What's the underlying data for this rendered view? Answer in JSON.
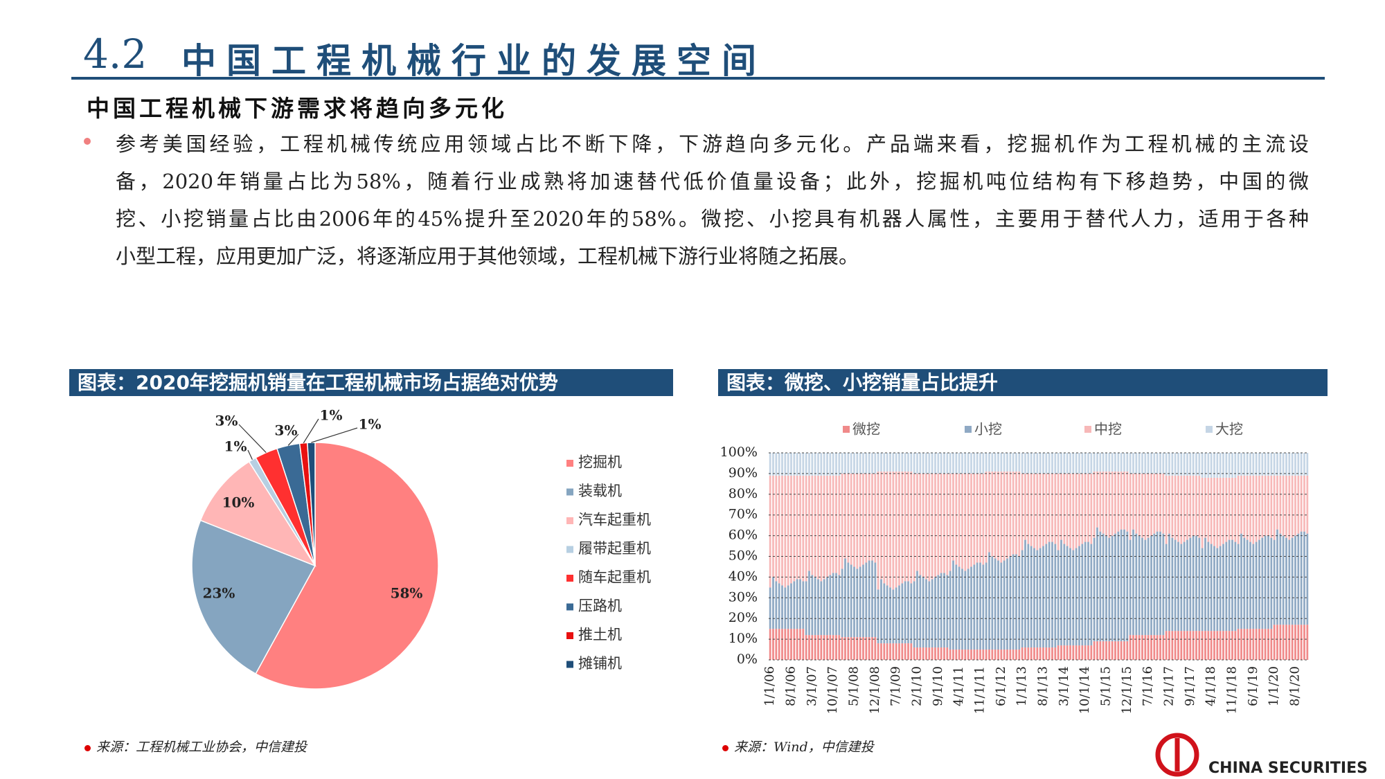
{
  "header": {
    "number": "4.2",
    "title": "中国工程机械行业的发展空间",
    "subtitle": "中国工程机械下游需求将趋向多元化"
  },
  "body": {
    "lines": [
      "参考美国经验，工程机械传统应用领域占比不断下降，下游趋向多元化。产品端来看，挖掘机作为工程机械的主流设",
      "备，2020年销量占比为58%，随着行业成熟将加速替代低价值量设备；此外，挖掘机吨位结构有下移趋势，中国的微",
      "挖、小挖销量占比由2006年的45%提升至2020年的58%。微挖、小挖具有机器人属性，主要用于替代人力，适用于各种",
      "小型工程，应用更加广泛，将逐渐应用于其他领域，工程机械下游行业将随之拓展。"
    ]
  },
  "chart_data": [
    {
      "type": "pie",
      "title": "图表：2020年挖掘机销量在工程机械市场占据绝对优势",
      "categories": [
        "挖掘机",
        "装载机",
        "汽车起重机",
        "履带起重机",
        "随车起重机",
        "压路机",
        "推土机",
        "摊铺机"
      ],
      "values": [
        58,
        23,
        10,
        1,
        3,
        3,
        1,
        1
      ],
      "value_labels": [
        "58%",
        "23%",
        "10%",
        "1%",
        "3%",
        "3%",
        "1%",
        "1%"
      ],
      "colors": [
        "#ff8080",
        "#85a5c0",
        "#ffb6b6",
        "#b7cfe2",
        "#ff3030",
        "#3a6a95",
        "#e81010",
        "#1f4e79"
      ],
      "source": "来源：工程机械工业协会，中信建投"
    },
    {
      "type": "bar",
      "stacked": true,
      "title": "图表：微挖、小挖销量占比提升",
      "categories": [
        "1/1/06",
        null,
        null,
        null,
        null,
        null,
        null,
        "8/1/06",
        null,
        null,
        null,
        null,
        null,
        null,
        "3/1/07",
        null,
        null,
        null,
        null,
        null,
        null,
        "10/1/07",
        null,
        null,
        null,
        null,
        null,
        null,
        "5/1/08",
        null,
        null,
        null,
        null,
        null,
        null,
        "12/1/08",
        null,
        null,
        null,
        null,
        null,
        null,
        "7/1/09",
        null,
        null,
        null,
        null,
        null,
        null,
        "2/1/10",
        null,
        null,
        null,
        null,
        null,
        null,
        "9/1/10",
        null,
        null,
        null,
        null,
        null,
        null,
        "4/1/11",
        null,
        null,
        null,
        null,
        null,
        null,
        "11/1/11",
        null,
        null,
        null,
        null,
        null,
        null,
        "6/1/12",
        null,
        null,
        null,
        null,
        null,
        null,
        "1/1/13",
        null,
        null,
        null,
        null,
        null,
        null,
        "8/1/13",
        null,
        null,
        null,
        null,
        null,
        null,
        "3/1/14",
        null,
        null,
        null,
        null,
        null,
        null,
        "10/1/14",
        null,
        null,
        null,
        null,
        null,
        null,
        "5/1/15",
        null,
        null,
        null,
        null,
        null,
        null,
        "12/1/15",
        null,
        null,
        null,
        null,
        null,
        null,
        "7/1/16",
        null,
        null,
        null,
        null,
        null,
        null,
        "2/1/17",
        null,
        null,
        null,
        null,
        null,
        null,
        "9/1/17",
        null,
        null,
        null,
        null,
        null,
        null,
        "4/1/18",
        null,
        null,
        null,
        null,
        null,
        null,
        "11/1/18",
        null,
        null,
        null,
        null,
        null,
        null,
        "6/1/19",
        null,
        null,
        null,
        null,
        null,
        null,
        "1/1/20",
        null,
        null,
        null,
        null,
        null,
        null,
        "8/1/20",
        null,
        null,
        null,
        null
      ],
      "series": [
        {
          "name": "微挖",
          "color": "#f08a8a",
          "values": [
            15,
            15,
            15,
            15,
            15,
            15,
            15,
            15,
            15,
            15,
            15,
            15,
            12,
            12,
            12,
            12,
            12,
            12,
            12,
            12,
            12,
            12,
            12,
            12,
            11,
            11,
            11,
            11,
            11,
            11,
            11,
            11,
            11,
            11,
            11,
            11,
            8,
            8,
            8,
            8,
            8,
            8,
            8,
            8,
            8,
            8,
            8,
            8,
            6,
            6,
            6,
            6,
            6,
            6,
            6,
            6,
            6,
            6,
            6,
            6,
            5,
            5,
            5,
            5,
            5,
            5,
            5,
            5,
            5,
            5,
            5,
            5,
            5,
            5,
            5,
            5,
            5,
            5,
            5,
            5,
            5,
            5,
            5,
            5,
            6,
            6,
            6,
            6,
            6,
            6,
            6,
            6,
            6,
            6,
            6,
            6,
            7,
            7,
            7,
            7,
            7,
            7,
            7,
            7,
            7,
            7,
            7,
            7,
            9,
            9,
            9,
            9,
            9,
            9,
            9,
            9,
            9,
            9,
            9,
            9,
            12,
            12,
            12,
            12,
            12,
            12,
            12,
            12,
            12,
            12,
            12,
            12,
            14,
            14,
            14,
            14,
            14,
            14,
            14,
            14,
            14,
            14,
            14,
            14,
            14,
            14,
            14,
            14,
            14,
            14,
            14,
            14,
            14,
            14,
            14,
            14,
            15,
            15,
            15,
            15,
            15,
            15,
            15,
            15,
            15,
            15,
            15,
            15,
            17,
            17,
            17,
            17,
            17,
            17,
            17,
            17,
            17,
            17,
            17,
            17
          ]
        },
        {
          "name": "小挖",
          "color": "#8fa9c4",
          "values": [
            20,
            25,
            23,
            22,
            21,
            20,
            21,
            22,
            23,
            24,
            24,
            23,
            26,
            31,
            29,
            28,
            27,
            26,
            27,
            28,
            29,
            30,
            30,
            29,
            33,
            38,
            36,
            35,
            34,
            33,
            34,
            35,
            36,
            37,
            37,
            36,
            26,
            31,
            29,
            28,
            27,
            26,
            27,
            28,
            29,
            30,
            30,
            29,
            32,
            37,
            35,
            34,
            33,
            32,
            33,
            34,
            35,
            36,
            36,
            35,
            38,
            43,
            41,
            40,
            39,
            38,
            39,
            40,
            41,
            42,
            42,
            41,
            42,
            47,
            45,
            44,
            43,
            42,
            43,
            44,
            45,
            46,
            46,
            45,
            47,
            52,
            50,
            49,
            48,
            47,
            48,
            49,
            50,
            51,
            51,
            50,
            46,
            51,
            49,
            48,
            47,
            46,
            47,
            48,
            49,
            50,
            50,
            49,
            50,
            55,
            53,
            52,
            51,
            50,
            51,
            52,
            53,
            54,
            54,
            53,
            46,
            51,
            49,
            48,
            47,
            46,
            47,
            48,
            49,
            50,
            50,
            49,
            42,
            47,
            45,
            44,
            43,
            42,
            43,
            44,
            45,
            46,
            46,
            45,
            40,
            45,
            43,
            42,
            41,
            40,
            41,
            42,
            43,
            44,
            44,
            43,
            41,
            46,
            44,
            43,
            42,
            41,
            42,
            43,
            44,
            45,
            45,
            44,
            41,
            46,
            44,
            43,
            42,
            41,
            42,
            43,
            44,
            45,
            45,
            44
          ]
        },
        {
          "name": "中挖",
          "color": "#f7b8b8",
          "values": [
            54,
            49,
            51,
            52,
            53,
            54,
            53,
            52,
            51,
            50,
            50,
            51,
            51,
            46,
            48,
            49,
            50,
            51,
            50,
            49,
            48,
            47,
            47,
            48,
            46,
            41,
            43,
            44,
            45,
            46,
            45,
            44,
            43,
            42,
            42,
            43,
            57,
            52,
            54,
            55,
            56,
            57,
            56,
            55,
            54,
            53,
            53,
            54,
            52,
            47,
            49,
            50,
            51,
            52,
            51,
            50,
            49,
            48,
            48,
            49,
            47,
            42,
            44,
            45,
            46,
            47,
            46,
            45,
            44,
            43,
            43,
            44,
            44,
            39,
            41,
            42,
            43,
            44,
            43,
            42,
            41,
            40,
            40,
            41,
            37,
            32,
            34,
            35,
            36,
            37,
            36,
            35,
            34,
            33,
            33,
            34,
            37,
            32,
            34,
            35,
            36,
            37,
            36,
            35,
            34,
            33,
            33,
            34,
            32,
            27,
            29,
            30,
            31,
            32,
            31,
            30,
            29,
            28,
            28,
            29,
            32,
            27,
            29,
            30,
            31,
            32,
            31,
            30,
            29,
            28,
            28,
            29,
            33,
            28,
            30,
            31,
            32,
            33,
            32,
            31,
            30,
            29,
            29,
            30,
            34,
            29,
            31,
            32,
            33,
            34,
            33,
            32,
            31,
            30,
            30,
            31,
            33,
            28,
            30,
            31,
            32,
            33,
            32,
            31,
            30,
            29,
            29,
            30,
            31,
            26,
            28,
            29,
            30,
            31,
            30,
            29,
            28,
            27,
            27,
            28
          ]
        },
        {
          "name": "大挖",
          "color": "#c5d5e5",
          "values": [
            11,
            11,
            11,
            11,
            11,
            11,
            11,
            11,
            11,
            11,
            11,
            11,
            11,
            11,
            11,
            11,
            11,
            11,
            11,
            11,
            11,
            11,
            11,
            11,
            10,
            10,
            10,
            10,
            10,
            10,
            10,
            10,
            10,
            10,
            10,
            10,
            9,
            9,
            9,
            9,
            9,
            9,
            9,
            9,
            9,
            9,
            9,
            9,
            10,
            10,
            10,
            10,
            10,
            10,
            10,
            10,
            10,
            10,
            10,
            10,
            10,
            10,
            10,
            10,
            10,
            10,
            10,
            10,
            10,
            10,
            10,
            10,
            9,
            9,
            9,
            9,
            9,
            9,
            9,
            9,
            9,
            9,
            9,
            9,
            10,
            10,
            10,
            10,
            10,
            10,
            10,
            10,
            10,
            10,
            10,
            10,
            10,
            10,
            10,
            10,
            10,
            10,
            10,
            10,
            10,
            10,
            10,
            10,
            9,
            9,
            9,
            9,
            9,
            9,
            9,
            9,
            9,
            9,
            9,
            9,
            10,
            10,
            10,
            10,
            10,
            10,
            10,
            10,
            10,
            10,
            10,
            10,
            11,
            11,
            11,
            11,
            11,
            11,
            11,
            11,
            11,
            11,
            11,
            11,
            12,
            12,
            12,
            12,
            12,
            12,
            12,
            12,
            12,
            12,
            12,
            12,
            11,
            11,
            11,
            11,
            11,
            11,
            11,
            11,
            11,
            11,
            11,
            11,
            11,
            11,
            11,
            11,
            11,
            11,
            11,
            11,
            11,
            11,
            11,
            11
          ]
        }
      ],
      "ylim": [
        0,
        100
      ],
      "yticks": [
        {
          "value": 0,
          "label": "0%"
        },
        {
          "value": 10,
          "label": "10%"
        },
        {
          "value": 20,
          "label": "20%"
        },
        {
          "value": 30,
          "label": "30%"
        },
        {
          "value": 40,
          "label": "40%"
        },
        {
          "value": 50,
          "label": "50%"
        },
        {
          "value": 60,
          "label": "60%"
        },
        {
          "value": 70,
          "label": "70%"
        },
        {
          "value": 80,
          "label": "80%"
        },
        {
          "value": 90,
          "label": "90%"
        },
        {
          "value": 100,
          "label": "100%"
        }
      ],
      "grid": true,
      "source": "来源：Wind，中信建投"
    }
  ],
  "logo": "CHINA SECURITIES"
}
